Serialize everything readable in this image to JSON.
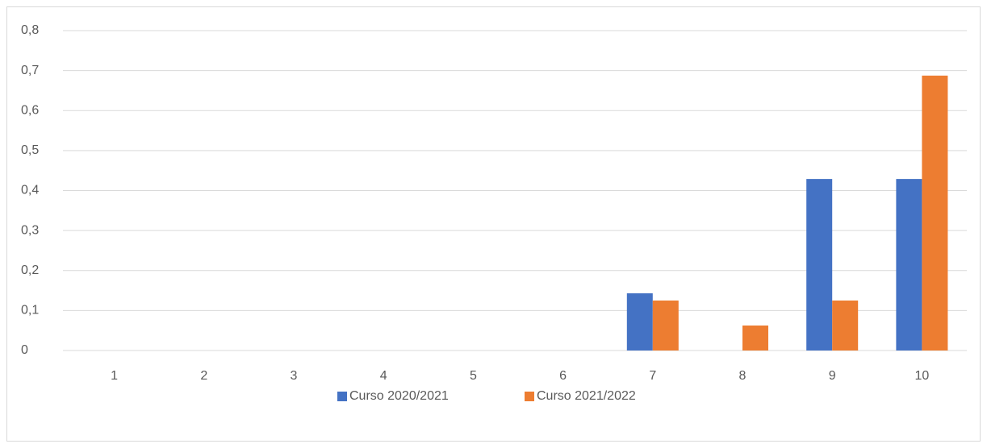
{
  "chart_data": {
    "type": "bar",
    "categories": [
      "1",
      "2",
      "3",
      "4",
      "5",
      "6",
      "7",
      "8",
      "9",
      "10"
    ],
    "series": [
      {
        "name": "Curso 2020/2021",
        "color": "#4472c4",
        "values": [
          0,
          0,
          0,
          0,
          0,
          0,
          0.143,
          0,
          0.429,
          0.429
        ]
      },
      {
        "name": "Curso 2021/2022",
        "color": "#ed7d31",
        "values": [
          0,
          0,
          0,
          0,
          0,
          0,
          0.125,
          0.0625,
          0.125,
          0.6875
        ]
      }
    ],
    "ylim": [
      0,
      0.8
    ],
    "yticks": [
      0,
      {
        "value": 0.1,
        "label": "0,1"
      },
      {
        "value": 0.2,
        "label": "0,2"
      },
      {
        "value": 0.3,
        "label": "0,3"
      },
      {
        "value": 0.4,
        "label": "0,4"
      },
      {
        "value": 0.5,
        "label": "0,5"
      },
      {
        "value": 0.6,
        "label": "0,6"
      },
      {
        "value": 0.7,
        "label": "0,7"
      },
      {
        "value": 0.8,
        "label": "0,8"
      }
    ],
    "grid": true,
    "legend": "bottom"
  }
}
